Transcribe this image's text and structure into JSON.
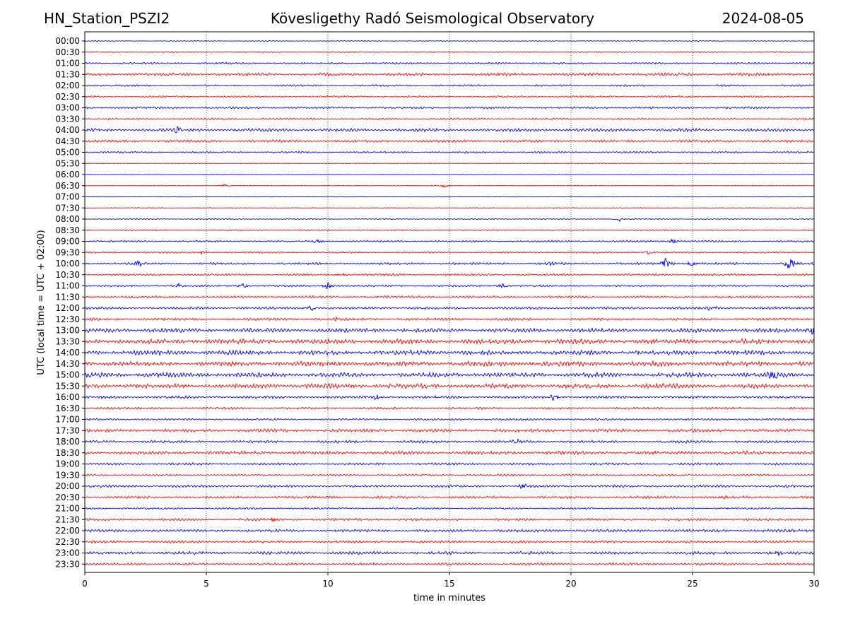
{
  "header": {
    "station": "HN_Station_PSZI2",
    "observatory": "Kövesligethy Radó Seismological Observatory",
    "date": "2024-08-05"
  },
  "chart_data": {
    "type": "line",
    "title": "Kövesligethy Radó Seismological Observatory",
    "xlabel": "time in minutes",
    "ylabel": "UTC (local time = UTC + 02:00)",
    "xlim": [
      0,
      30
    ],
    "xticks": [
      "0",
      "5",
      "10",
      "15",
      "20",
      "25",
      "30"
    ],
    "grid_x": [
      5,
      10,
      15,
      20,
      25
    ],
    "row_labels": [
      "00:00",
      "00:30",
      "01:00",
      "01:30",
      "02:00",
      "02:30",
      "03:00",
      "03:30",
      "04:00",
      "04:30",
      "05:00",
      "05:30",
      "06:00",
      "06:30",
      "07:00",
      "07:30",
      "08:00",
      "08:30",
      "09:00",
      "09:30",
      "10:00",
      "10:30",
      "11:00",
      "11:30",
      "12:00",
      "12:30",
      "13:00",
      "13:30",
      "14:00",
      "14:30",
      "15:00",
      "15:30",
      "16:00",
      "16:30",
      "17:00",
      "17:30",
      "18:00",
      "18:30",
      "19:00",
      "19:30",
      "20:00",
      "20:30",
      "21:00",
      "21:30",
      "22:00",
      "22:30",
      "23:00",
      "23:30"
    ],
    "trace_colors": [
      "#0000ff",
      "#ff0000"
    ],
    "row_noise": [
      0.5,
      0.6,
      1.0,
      1.6,
      1.0,
      1.0,
      1.1,
      0.9,
      1.6,
      1.3,
      1.0,
      0.4,
      0.3,
      0.3,
      0.3,
      0.4,
      0.6,
      0.7,
      1.0,
      0.9,
      1.2,
      1.1,
      1.0,
      1.2,
      1.3,
      1.3,
      2.2,
      2.6,
      2.4,
      2.6,
      2.4,
      2.4,
      1.4,
      1.2,
      1.1,
      1.7,
      1.4,
      1.8,
      1.2,
      1.0,
      1.3,
      1.3,
      1.0,
      1.3,
      1.5,
      1.3,
      1.6,
      1.3
    ],
    "events": [
      {
        "row": "04:00",
        "t": 3.8,
        "amp": 5
      },
      {
        "row": "06:30",
        "t": 5.8,
        "amp": 3
      },
      {
        "row": "06:30",
        "t": 14.8,
        "amp": 3
      },
      {
        "row": "08:00",
        "t": 22.0,
        "amp": 3
      },
      {
        "row": "09:00",
        "t": 9.6,
        "amp": 4
      },
      {
        "row": "09:00",
        "t": 24.2,
        "amp": 4
      },
      {
        "row": "09:30",
        "t": 4.8,
        "amp": 3
      },
      {
        "row": "09:30",
        "t": 23.2,
        "amp": 3
      },
      {
        "row": "10:00",
        "t": 2.2,
        "amp": 5
      },
      {
        "row": "10:00",
        "t": 19.2,
        "amp": 5
      },
      {
        "row": "10:00",
        "t": 23.9,
        "amp": 10
      },
      {
        "row": "10:00",
        "t": 25.0,
        "amp": 6
      },
      {
        "row": "10:00",
        "t": 29.0,
        "amp": 12
      },
      {
        "row": "10:30",
        "t": 10.6,
        "amp": 4
      },
      {
        "row": "11:00",
        "t": 3.9,
        "amp": 4
      },
      {
        "row": "11:00",
        "t": 6.5,
        "amp": 4
      },
      {
        "row": "11:00",
        "t": 10.0,
        "amp": 6
      },
      {
        "row": "11:00",
        "t": 17.2,
        "amp": 4
      },
      {
        "row": "12:00",
        "t": 9.3,
        "amp": 5
      },
      {
        "row": "12:00",
        "t": 25.8,
        "amp": 5
      },
      {
        "row": "12:30",
        "t": 10.3,
        "amp": 3
      },
      {
        "row": "13:00",
        "t": 30.0,
        "amp": 9
      },
      {
        "row": "15:00",
        "t": 28.3,
        "amp": 8
      },
      {
        "row": "16:00",
        "t": 12.0,
        "amp": 5
      },
      {
        "row": "16:00",
        "t": 19.3,
        "amp": 8
      },
      {
        "row": "18:00",
        "t": 17.8,
        "amp": 4
      },
      {
        "row": "20:00",
        "t": 18.0,
        "amp": 4
      },
      {
        "row": "20:30",
        "t": 26.3,
        "amp": 3
      },
      {
        "row": "21:30",
        "t": 7.8,
        "amp": 3
      },
      {
        "row": "23:00",
        "t": 28.5,
        "amp": 4
      }
    ]
  }
}
